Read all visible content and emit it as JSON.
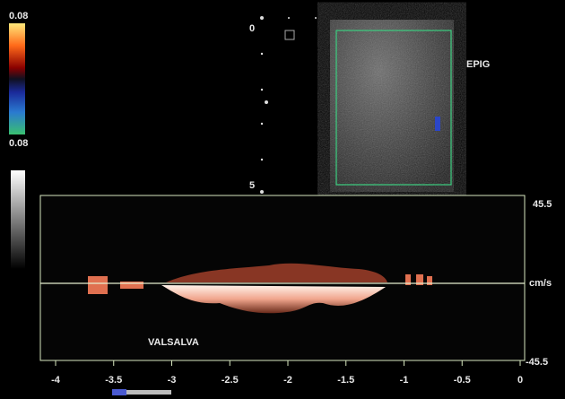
{
  "color_bar": {
    "top_label": "0.08",
    "bottom_label": "0.08"
  },
  "depth_scale": {
    "top_label": "0",
    "bottom_label": "5"
  },
  "image_label": "EPIG",
  "spectrum": {
    "velocity_labels": {
      "top": "45.5",
      "unit": "cm/s",
      "bottom": "-45.5"
    },
    "annotation": "VALSALVA",
    "time_labels": [
      "-4",
      "-3.5",
      "-3",
      "-2.5",
      "-2",
      "-1.5",
      "-1",
      "-0.5",
      "0"
    ]
  }
}
